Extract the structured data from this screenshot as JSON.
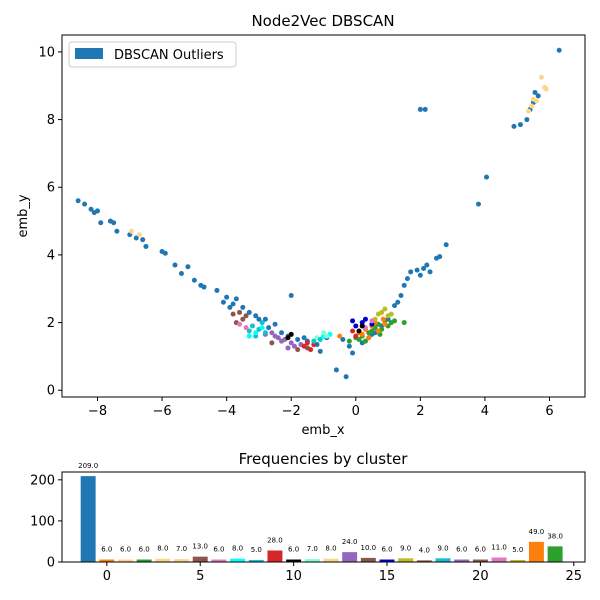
{
  "chart_data": [
    {
      "type": "scatter",
      "title": "Node2Vec DBSCAN",
      "xlabel": "emb_x",
      "ylabel": "emb_y",
      "xlim": [
        -9.1,
        7.1
      ],
      "ylim": [
        -0.2,
        10.5
      ],
      "xticks": [
        -8,
        -6,
        -4,
        -2,
        0,
        2,
        4,
        6
      ],
      "yticks": [
        0,
        2,
        4,
        6,
        8,
        10
      ],
      "legend": {
        "position": "top-left",
        "entries": [
          "DBSCAN Outliers"
        ]
      },
      "grid": false,
      "series": [
        {
          "name": "DBSCAN Outliers",
          "color": "#1f77b4",
          "points": [
            [
              -8.6,
              5.6
            ],
            [
              -8.4,
              5.5
            ],
            [
              -8.2,
              5.35
            ],
            [
              -8.1,
              5.25
            ],
            [
              -8.0,
              5.3
            ],
            [
              -7.9,
              4.95
            ],
            [
              -7.6,
              5.0
            ],
            [
              -7.5,
              4.95
            ],
            [
              -7.4,
              4.7
            ],
            [
              -7.0,
              4.6
            ],
            [
              -6.8,
              4.5
            ],
            [
              -6.6,
              4.45
            ],
            [
              -6.5,
              4.25
            ],
            [
              -6.0,
              4.1
            ],
            [
              -5.9,
              4.05
            ],
            [
              -5.6,
              3.7
            ],
            [
              -5.4,
              3.45
            ],
            [
              -5.2,
              3.65
            ],
            [
              -5.0,
              3.25
            ],
            [
              -4.8,
              3.1
            ],
            [
              -4.7,
              3.05
            ],
            [
              -4.3,
              2.95
            ],
            [
              -4.1,
              2.6
            ],
            [
              -4.0,
              2.75
            ],
            [
              -3.8,
              2.55
            ],
            [
              -3.7,
              2.7
            ],
            [
              -3.5,
              2.45
            ],
            [
              -3.3,
              2.3
            ],
            [
              -3.1,
              2.2
            ],
            [
              -2.8,
              2.1
            ],
            [
              -2.5,
              1.95
            ],
            [
              -2.3,
              1.7
            ],
            [
              -2.1,
              1.6
            ],
            [
              -1.8,
              1.5
            ],
            [
              -1.5,
              1.45
            ],
            [
              -1.2,
              1.35
            ],
            [
              -0.9,
              1.55
            ],
            [
              -0.6,
              0.6
            ],
            [
              -0.4,
              1.5
            ],
            [
              -0.2,
              1.3
            ],
            [
              -0.1,
              1.1
            ],
            [
              0.2,
              1.4
            ],
            [
              0.4,
              1.55
            ],
            [
              0.6,
              1.7
            ],
            [
              0.8,
              1.9
            ],
            [
              1.0,
              2.1
            ],
            [
              1.2,
              2.5
            ],
            [
              1.4,
              2.8
            ],
            [
              1.5,
              3.1
            ],
            [
              1.6,
              3.3
            ],
            [
              1.7,
              3.5
            ],
            [
              1.9,
              3.55
            ],
            [
              2.0,
              3.4
            ],
            [
              2.1,
              3.6
            ],
            [
              2.2,
              3.7
            ],
            [
              2.3,
              3.5
            ],
            [
              2.5,
              3.9
            ],
            [
              2.6,
              3.95
            ],
            [
              2.8,
              4.3
            ],
            [
              -1.1,
              1.15
            ],
            [
              -0.3,
              0.4
            ],
            [
              2.0,
              8.3
            ],
            [
              2.15,
              8.3
            ],
            [
              3.8,
              5.5
            ],
            [
              4.05,
              6.3
            ],
            [
              4.9,
              7.8
            ],
            [
              5.1,
              7.85
            ],
            [
              5.3,
              8.0
            ],
            [
              5.4,
              8.3
            ],
            [
              5.5,
              8.5
            ],
            [
              5.55,
              8.8
            ],
            [
              5.65,
              8.7
            ],
            [
              6.3,
              10.05
            ],
            [
              -2.0,
              2.8
            ],
            [
              -3.9,
              2.45
            ],
            [
              -1.6,
              1.55
            ],
            [
              0.5,
              1.65
            ],
            [
              1.3,
              2.6
            ],
            [
              -2.7,
              1.85
            ],
            [
              -3.0,
              2.1
            ]
          ]
        },
        {
          "name": "",
          "color": "#2ca02c",
          "points": [
            [
              0.0,
              1.55
            ],
            [
              0.2,
              1.6
            ],
            [
              0.4,
              1.7
            ],
            [
              0.6,
              1.85
            ],
            [
              0.7,
              1.95
            ],
            [
              0.8,
              1.8
            ],
            [
              0.9,
              2.05
            ],
            [
              1.0,
              1.9
            ],
            [
              1.1,
              2.0
            ],
            [
              0.3,
              1.45
            ],
            [
              0.5,
              1.75
            ],
            [
              1.2,
              2.05
            ],
            [
              0.1,
              1.5
            ],
            [
              -0.2,
              1.45
            ],
            [
              0.75,
              1.65
            ],
            [
              1.5,
              2.0
            ]
          ]
        },
        {
          "name": "",
          "color": "#ff7f0e",
          "points": [
            [
              0.1,
              1.7
            ],
            [
              0.3,
              1.8
            ],
            [
              0.5,
              1.9
            ],
            [
              0.7,
              1.75
            ],
            [
              0.9,
              1.95
            ],
            [
              0.2,
              1.65
            ],
            [
              0.6,
              2.0
            ],
            [
              -0.5,
              1.6
            ],
            [
              0.4,
              1.55
            ],
            [
              0.85,
              2.1
            ]
          ]
        },
        {
          "name": "",
          "color": "#9467bd",
          "points": [
            [
              -2.0,
              1.4
            ],
            [
              -2.2,
              1.5
            ],
            [
              -2.4,
              1.55
            ],
            [
              -2.6,
              1.7
            ],
            [
              -1.9,
              1.3
            ],
            [
              -2.1,
              1.25
            ],
            [
              -2.3,
              1.45
            ],
            [
              -1.7,
              1.35
            ],
            [
              -2.5,
              1.6
            ],
            [
              -2.8,
              1.65
            ]
          ]
        },
        {
          "name": "",
          "color": "#8c564b",
          "points": [
            [
              -3.6,
              2.3
            ],
            [
              -3.5,
              2.1
            ],
            [
              -3.8,
              2.25
            ],
            [
              -3.4,
              2.2
            ],
            [
              -1.8,
              1.2
            ],
            [
              -2.6,
              1.4
            ],
            [
              -3.7,
              2.0
            ],
            [
              -1.5,
              1.25
            ]
          ]
        },
        {
          "name": "",
          "color": "#17becf",
          "points": [
            [
              -3.0,
              1.8
            ],
            [
              -3.2,
              1.9
            ],
            [
              -2.8,
              1.7
            ],
            [
              -3.1,
              1.6
            ],
            [
              -2.9,
              2.0
            ],
            [
              -3.3,
              1.75
            ]
          ]
        },
        {
          "name": "",
          "color": "#00ffff",
          "points": [
            [
              -3.1,
              1.7
            ],
            [
              -2.9,
              1.85
            ],
            [
              -1.0,
              1.6
            ],
            [
              -0.8,
              1.65
            ],
            [
              -3.3,
              1.6
            ]
          ]
        },
        {
          "name": "",
          "color": "#d62728",
          "points": [
            [
              -1.5,
              1.4
            ],
            [
              -1.4,
              1.2
            ],
            [
              -1.3,
              1.35
            ],
            [
              -1.6,
              1.3
            ],
            [
              0.0,
              1.6
            ],
            [
              -0.1,
              1.75
            ]
          ]
        },
        {
          "name": "",
          "color": "#0000cd",
          "points": [
            [
              0.0,
              1.9
            ],
            [
              0.2,
              2.0
            ],
            [
              0.5,
              1.95
            ],
            [
              -0.1,
              2.05
            ],
            [
              0.3,
              2.1
            ]
          ]
        },
        {
          "name": "",
          "color": "#bcbd22",
          "points": [
            [
              0.6,
              2.1
            ],
            [
              0.8,
              2.3
            ],
            [
              1.0,
              2.2
            ],
            [
              0.9,
              2.4
            ],
            [
              1.1,
              2.25
            ],
            [
              0.7,
              2.25
            ]
          ]
        },
        {
          "name": "",
          "color": "#e377c2",
          "points": [
            [
              -3.4,
              1.85
            ],
            [
              -3.6,
              1.95
            ],
            [
              0.3,
              1.85
            ],
            [
              0.5,
              2.05
            ]
          ]
        },
        {
          "name": "",
          "color": "#000000",
          "points": [
            [
              -2.1,
              1.55
            ],
            [
              -2.0,
              1.65
            ],
            [
              0.1,
              1.75
            ],
            [
              0.2,
              1.9
            ]
          ]
        },
        {
          "name": "",
          "color": "#ffd58c",
          "points": [
            [
              5.35,
              8.25
            ],
            [
              5.5,
              8.6
            ],
            [
              5.75,
              9.25
            ],
            [
              5.85,
              8.95
            ],
            [
              5.9,
              8.9
            ],
            [
              5.6,
              8.55
            ],
            [
              -6.95,
              4.7
            ],
            [
              -6.7,
              4.6
            ],
            [
              5.45,
              8.4
            ]
          ]
        },
        {
          "name": "",
          "color": "#7fffd4",
          "points": [
            [
              -1.0,
              1.7
            ],
            [
              -0.9,
              1.6
            ],
            [
              -1.2,
              1.55
            ]
          ]
        },
        {
          "name": "",
          "color": "#00ced1",
          "points": [
            [
              -1.3,
              1.45
            ],
            [
              -1.1,
              1.5
            ]
          ]
        }
      ]
    },
    {
      "type": "bar",
      "title": "Frequencies by cluster",
      "xlabel": "",
      "ylabel": "",
      "xlim": [
        -2.4,
        25.6
      ],
      "ylim": [
        0,
        219
      ],
      "xticks": [
        0,
        5,
        10,
        15,
        20,
        25
      ],
      "yticks": [
        0,
        100,
        200
      ],
      "categories": [
        -1,
        0,
        1,
        2,
        3,
        4,
        5,
        6,
        7,
        8,
        9,
        10,
        11,
        12,
        13,
        14,
        15,
        16,
        17,
        18,
        19,
        20,
        21,
        22,
        23,
        24
      ],
      "values": [
        209,
        6,
        6,
        6,
        8,
        7,
        13,
        6,
        8,
        5,
        28,
        6,
        7,
        8,
        24,
        10,
        6,
        9,
        4,
        9,
        6,
        6,
        11,
        5,
        49,
        38
      ],
      "value_labels": [
        "209.0",
        "6.0",
        "6.0",
        "6.0",
        "8.0",
        "7.0",
        "13.0",
        "6.0",
        "8.0",
        "5.0",
        "28.0",
        "6.0",
        "7.0",
        "8.0",
        "24.0",
        "10.0",
        "6.0",
        "9.0",
        "4.0",
        "9.0",
        "6.0",
        "6.0",
        "11.0",
        "5.0",
        "49.0",
        "38.0"
      ],
      "colors": [
        "#1f77b4",
        "#ff7f0e",
        "#ffd58c",
        "#2ca02c",
        "#ffd58c",
        "#ffd58c",
        "#8c564b",
        "#e377c2",
        "#00ffff",
        "#17becf",
        "#d62728",
        "#000000",
        "#7fffd4",
        "#ffd58c",
        "#9467bd",
        "#8c564b",
        "#0000cd",
        "#bcbd22",
        "#8c564b",
        "#17becf",
        "#9467bd",
        "#8c564b",
        "#e377c2",
        "#bcbd22",
        "#ff7f0e",
        "#2ca02c"
      ]
    }
  ]
}
